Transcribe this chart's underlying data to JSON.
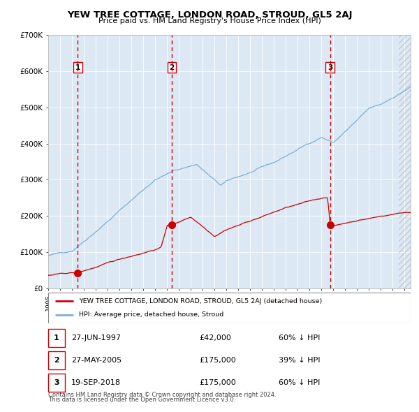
{
  "title": "YEW TREE COTTAGE, LONDON ROAD, STROUD, GL5 2AJ",
  "subtitle": "Price paid vs. HM Land Registry's House Price Index (HPI)",
  "legend_label_red": "YEW TREE COTTAGE, LONDON ROAD, STROUD, GL5 2AJ (detached house)",
  "legend_label_blue": "HPI: Average price, detached house, Stroud",
  "transactions": [
    {
      "label": "1",
      "date": "27-JUN-1997",
      "price": 42000,
      "hpi_pct": "60% ↓ HPI",
      "x_year": 1997.49
    },
    {
      "label": "2",
      "date": "27-MAY-2005",
      "price": 175000,
      "hpi_pct": "39% ↓ HPI",
      "x_year": 2005.4
    },
    {
      "label": "3",
      "date": "19-SEP-2018",
      "price": 175000,
      "hpi_pct": "60% ↓ HPI",
      "x_year": 2018.72
    }
  ],
  "footnote1": "Contains HM Land Registry data © Crown copyright and database right 2024.",
  "footnote2": "This data is licensed under the Open Government Licence v3.0.",
  "ylim": [
    0,
    700000
  ],
  "xlim_start": 1995.0,
  "xlim_end": 2025.5,
  "background_color": "#dce9f5",
  "red_line_color": "#cc0000",
  "blue_line_color": "#7ab0d4",
  "dashed_line_color": "#cc0000",
  "hatching_color": "#b8c4d0"
}
